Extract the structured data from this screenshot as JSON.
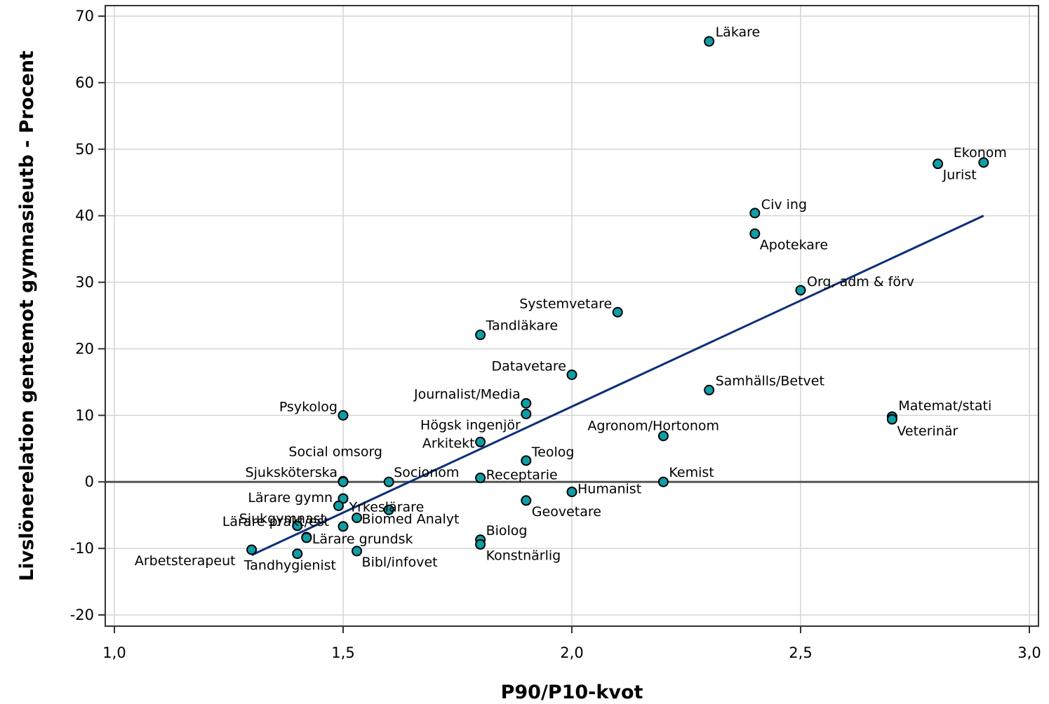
{
  "colors": {
    "marker_fill": "#0f9ea6",
    "marker_stroke": "#000000",
    "trend_line": "#0d2f78",
    "zero_line": "#555555",
    "grid": "#d4d4d4"
  },
  "chart_data": {
    "type": "scatter",
    "xlabel": "P90/P10-kvot",
    "ylabel": "Livslönerelation gentemot gymnasieutb - Procent",
    "xlim": [
      1.0,
      3.0
    ],
    "ylim": [
      -20,
      70
    ],
    "grid": true,
    "x_ticks": [
      "1,0",
      "1,5",
      "2,0",
      "2,5",
      "3,0"
    ],
    "y_ticks": [
      "-20",
      "-10",
      "0",
      "10",
      "20",
      "30",
      "40",
      "50",
      "60",
      "70"
    ],
    "reference_line_y": 0,
    "trend_line": {
      "x": [
        1.3,
        2.9
      ],
      "y": [
        -11,
        40
      ]
    },
    "points": [
      {
        "label": "Läkare",
        "x": 2.3,
        "y": 66.2
      },
      {
        "label": "Ekonom",
        "x": 2.9,
        "y": 48.0
      },
      {
        "label": "Jurist",
        "x": 2.8,
        "y": 47.8
      },
      {
        "label": "Civ ing",
        "x": 2.4,
        "y": 40.4
      },
      {
        "label": "Apotekare",
        "x": 2.4,
        "y": 37.3
      },
      {
        "label": "Org, adm & förv",
        "x": 2.5,
        "y": 28.8
      },
      {
        "label": "Systemvetare",
        "x": 2.1,
        "y": 25.5
      },
      {
        "label": "Tandläkare",
        "x": 1.8,
        "y": 22.1
      },
      {
        "label": "Datavetare",
        "x": 2.0,
        "y": 16.1
      },
      {
        "label": "Samhälls/Betvet",
        "x": 2.3,
        "y": 13.8
      },
      {
        "label": "Journalist/Media",
        "x": 1.9,
        "y": 11.8
      },
      {
        "label": "Högsk ingenjör",
        "x": 1.9,
        "y": 10.2
      },
      {
        "label": "Psykolog",
        "x": 1.5,
        "y": 10.0
      },
      {
        "label": "Matemat/stati",
        "x": 2.7,
        "y": 9.8
      },
      {
        "label": "Veterinär",
        "x": 2.7,
        "y": 9.4
      },
      {
        "label": "Agronom/Hortonom",
        "x": 2.2,
        "y": 6.9
      },
      {
        "label": "Arkitekt",
        "x": 1.8,
        "y": 6.0
      },
      {
        "label": "Teolog",
        "x": 1.9,
        "y": 3.2
      },
      {
        "label": "Social omsorg",
        "x": 1.5,
        "y": 0.1
      },
      {
        "label": "Sjuksköterska",
        "x": 1.5,
        "y": 0.0
      },
      {
        "label": "Socionom",
        "x": 1.6,
        "y": 0.0
      },
      {
        "label": "Kemist",
        "x": 2.2,
        "y": 0.0
      },
      {
        "label": "Receptarie",
        "x": 1.8,
        "y": 0.6
      },
      {
        "label": "Humanist",
        "x": 2.0,
        "y": -1.5
      },
      {
        "label": "Lärare gymn",
        "x": 1.5,
        "y": -2.5
      },
      {
        "label": "Yrkeslärare",
        "x": 1.49,
        "y": -3.6
      },
      {
        "label": "Geovetare",
        "x": 1.9,
        "y": -2.8
      },
      {
        "label": "Biomed Analyt",
        "x": 1.53,
        "y": -5.4
      },
      {
        "label": "Sjukgymnast",
        "x": 1.4,
        "y": -6.6
      },
      {
        "label": "",
        "x": 1.5,
        "y": -6.7
      },
      {
        "label": "",
        "x": 1.6,
        "y": -4.2
      },
      {
        "label": "Lärare prakt/est",
        "x": 1.42,
        "y": -8.3
      },
      {
        "label": "Lärare grundsk",
        "x": 1.42,
        "y": -8.4
      },
      {
        "label": "Biolog",
        "x": 1.8,
        "y": -8.7
      },
      {
        "label": "Konstnärlig",
        "x": 1.8,
        "y": -9.4
      },
      {
        "label": "Arbetsterapeut",
        "x": 1.3,
        "y": -10.2
      },
      {
        "label": "Tandhygienist",
        "x": 1.4,
        "y": -10.8
      },
      {
        "label": "Bibl/infovet",
        "x": 1.53,
        "y": -10.4
      }
    ]
  }
}
